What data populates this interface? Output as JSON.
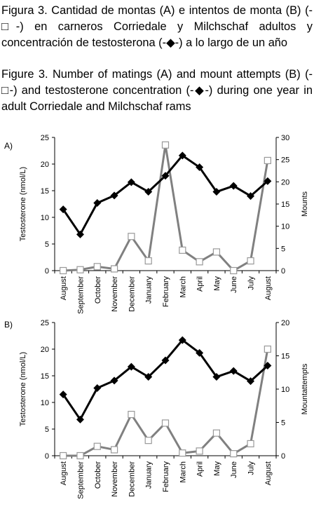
{
  "caption_es": "Figura 3. Cantidad de montas (A) e intentos de monta (B) (-□-) en carneros Corriedale y Milchschaf adultos y concentración de testosterona (-◆-) a lo largo de un año",
  "caption_en": "Figure 3. Number of matings (A) and mount attempts (B) (-□-) and testosterone concentration (-◆-) during one year in adult Corriedale and Milchschaf rams",
  "colors": {
    "testosterone": "#000000",
    "counts": "#808080",
    "marker_fill": "#ffffff"
  },
  "chart_data": [
    {
      "panel": "A)",
      "type": "line",
      "categories": [
        "August",
        "September",
        "October",
        "November",
        "December",
        "January",
        "February",
        "March",
        "April",
        "May",
        "June",
        "July",
        "August"
      ],
      "ylabel": "Testosterone (nmol/L)",
      "y2label": "Mounts",
      "ylim": [
        0,
        25
      ],
      "y2lim": [
        0,
        30
      ],
      "yticks": [
        0,
        5,
        10,
        15,
        20,
        25
      ],
      "y2ticks": [
        0,
        5,
        10,
        15,
        20,
        25,
        30
      ],
      "series": [
        {
          "axis": "left",
          "marker": "diamond",
          "values": [
            11.5,
            6.8,
            12.7,
            14.1,
            16.6,
            14.8,
            17.8,
            21.6,
            19.4,
            14.8,
            15.9,
            14.0,
            16.8
          ]
        },
        {
          "axis": "right",
          "marker": "square",
          "values": [
            0,
            0.2,
            0.9,
            0.4,
            7.7,
            2.2,
            28.3,
            4.6,
            2.0,
            4.2,
            0,
            2.2,
            24.8
          ]
        }
      ]
    },
    {
      "panel": "B)",
      "type": "line",
      "categories": [
        "August",
        "September",
        "October",
        "November",
        "December",
        "January",
        "February",
        "March",
        "April",
        "May",
        "June",
        "July",
        "August"
      ],
      "ylabel": "Testosterone (nmol/L)",
      "y2label": "Mountattempts",
      "ylim": [
        0,
        25
      ],
      "y2lim": [
        0,
        20
      ],
      "yticks": [
        0,
        5,
        10,
        15,
        20,
        25
      ],
      "y2ticks": [
        0,
        5,
        10,
        15,
        20
      ],
      "series": [
        {
          "axis": "left",
          "marker": "diamond",
          "values": [
            11.5,
            6.8,
            12.7,
            14.1,
            16.7,
            14.8,
            17.9,
            21.7,
            19.3,
            14.8,
            15.9,
            14.0,
            16.9
          ]
        },
        {
          "axis": "right",
          "marker": "square",
          "values": [
            0,
            0,
            1.4,
            0.9,
            6.2,
            2.3,
            4.9,
            0.4,
            0.7,
            3.4,
            0.3,
            1.8,
            16.0
          ]
        }
      ]
    }
  ]
}
